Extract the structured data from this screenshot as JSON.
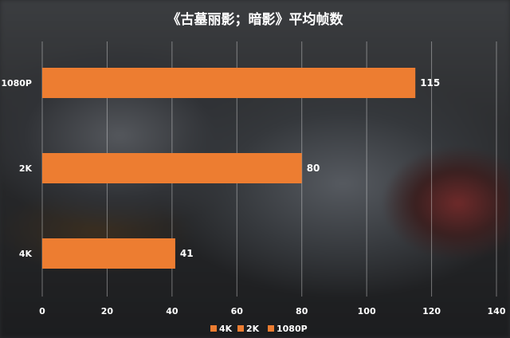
{
  "chart_data": {
    "type": "bar",
    "orientation": "horizontal",
    "title": "《古墓丽影；暗影》平均帧数",
    "categories": [
      "1080P",
      "2K",
      "4K"
    ],
    "values": [
      115,
      80,
      41
    ],
    "xlim": [
      0,
      140
    ],
    "xticks": [
      0,
      20,
      40,
      60,
      80,
      100,
      120,
      140
    ],
    "legend": [
      "4K",
      "2K",
      "1080P"
    ],
    "legend_position": "bottom",
    "grid": true,
    "bar_color": "#ed7d31"
  }
}
